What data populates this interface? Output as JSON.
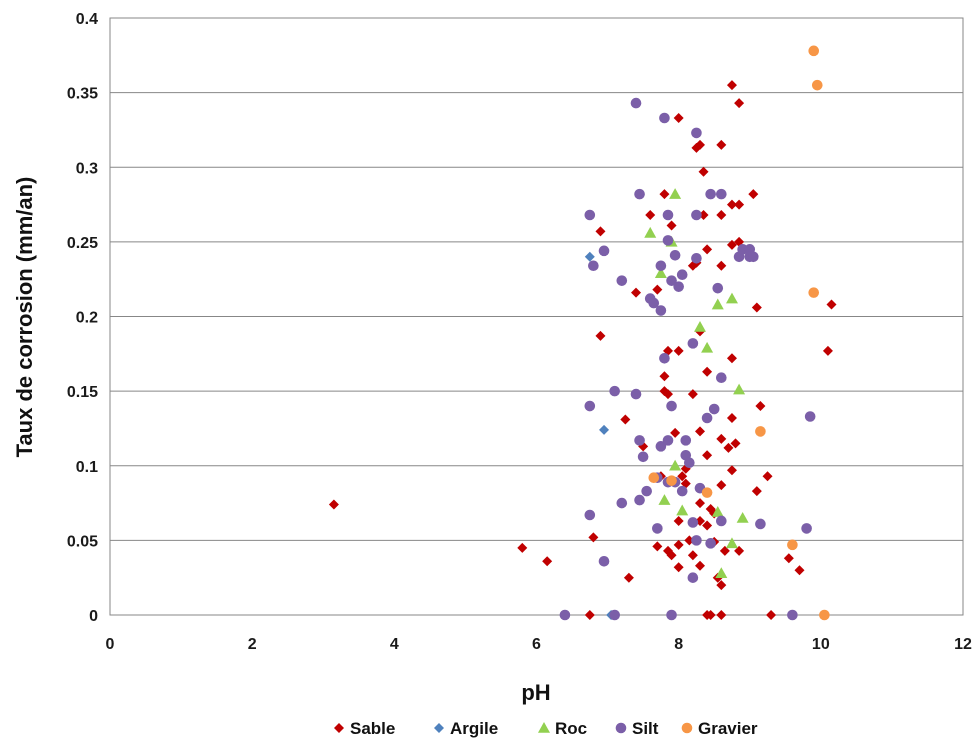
{
  "chart_data": {
    "type": "scatter",
    "title": "",
    "xlabel": "pH",
    "ylabel": "Taux de corrosion (mm/an)",
    "xlim": [
      0,
      12
    ],
    "ylim": [
      0,
      0.4
    ],
    "x_ticks": [
      0,
      2,
      4,
      6,
      8,
      10,
      12
    ],
    "y_ticks": [
      0,
      0.05,
      0.1,
      0.15,
      0.2,
      0.25,
      0.3,
      0.35,
      0.4
    ],
    "grid": "horizontal",
    "legend_position": "bottom",
    "series": [
      {
        "name": "Sable",
        "color": "#c00000",
        "marker": "diamond",
        "points": [
          [
            3.15,
            0.074
          ],
          [
            5.8,
            0.045
          ],
          [
            6.15,
            0.036
          ],
          [
            6.75,
            0
          ],
          [
            6.8,
            0.052
          ],
          [
            6.9,
            0.187
          ],
          [
            6.9,
            0.257
          ],
          [
            7.25,
            0.131
          ],
          [
            7.3,
            0.025
          ],
          [
            7.4,
            0.216
          ],
          [
            7.5,
            0.113
          ],
          [
            7.6,
            0.268
          ],
          [
            7.7,
            0.218
          ],
          [
            7.7,
            0.046
          ],
          [
            7.75,
            0.093
          ],
          [
            7.8,
            0.282
          ],
          [
            7.8,
            0.16
          ],
          [
            7.8,
            0.15
          ],
          [
            7.85,
            0.177
          ],
          [
            7.85,
            0.148
          ],
          [
            7.85,
            0.043
          ],
          [
            7.9,
            0.04
          ],
          [
            7.9,
            0.261
          ],
          [
            7.9,
            0
          ],
          [
            7.95,
            0.122
          ],
          [
            8.0,
            0.333
          ],
          [
            8.0,
            0.177
          ],
          [
            8.0,
            0.063
          ],
          [
            8.0,
            0.047
          ],
          [
            8.0,
            0.032
          ],
          [
            8.05,
            0.093
          ],
          [
            8.1,
            0.098
          ],
          [
            8.1,
            0.088
          ],
          [
            8.15,
            0.05
          ],
          [
            8.2,
            0.148
          ],
          [
            8.2,
            0.04
          ],
          [
            8.2,
            0.234
          ],
          [
            8.25,
            0.236
          ],
          [
            8.25,
            0.313
          ],
          [
            8.3,
            0.315
          ],
          [
            8.3,
            0.063
          ],
          [
            8.3,
            0.075
          ],
          [
            8.3,
            0.033
          ],
          [
            8.3,
            0.123
          ],
          [
            8.3,
            0.19
          ],
          [
            8.35,
            0.297
          ],
          [
            8.35,
            0.268
          ],
          [
            8.4,
            0.163
          ],
          [
            8.4,
            0.245
          ],
          [
            8.4,
            0.107
          ],
          [
            8.4,
            0.06
          ],
          [
            8.4,
            0
          ],
          [
            8.45,
            0
          ],
          [
            8.45,
            0.071
          ],
          [
            8.5,
            0.049
          ],
          [
            8.5,
            0.068
          ],
          [
            8.55,
            0.025
          ],
          [
            8.6,
            0.02
          ],
          [
            8.6,
            0.315
          ],
          [
            8.6,
            0.268
          ],
          [
            8.6,
            0.234
          ],
          [
            8.6,
            0.118
          ],
          [
            8.6,
            0.087
          ],
          [
            8.6,
            0
          ],
          [
            8.65,
            0.043
          ],
          [
            8.7,
            0.112
          ],
          [
            8.75,
            0.355
          ],
          [
            8.75,
            0.275
          ],
          [
            8.75,
            0.248
          ],
          [
            8.75,
            0.172
          ],
          [
            8.75,
            0.132
          ],
          [
            8.75,
            0.097
          ],
          [
            8.8,
            0.115
          ],
          [
            8.85,
            0.343
          ],
          [
            8.85,
            0.275
          ],
          [
            8.85,
            0.25
          ],
          [
            8.85,
            0.043
          ],
          [
            9.05,
            0.282
          ],
          [
            9.1,
            0.206
          ],
          [
            9.1,
            0.083
          ],
          [
            9.15,
            0.14
          ],
          [
            9.25,
            0.093
          ],
          [
            9.3,
            0
          ],
          [
            9.55,
            0.038
          ],
          [
            9.7,
            0.03
          ],
          [
            10.1,
            0.177
          ],
          [
            10.15,
            0.208
          ]
        ]
      },
      {
        "name": "Argile",
        "color": "#4f81bd",
        "marker": "diamond",
        "points": [
          [
            6.75,
            0.24
          ],
          [
            6.95,
            0.124
          ],
          [
            7.05,
            0
          ],
          [
            7.1,
            0
          ]
        ]
      },
      {
        "name": "Roc",
        "color": "#92d050",
        "marker": "triangle",
        "points": [
          [
            7.6,
            0.256
          ],
          [
            7.75,
            0.229
          ],
          [
            7.8,
            0.077
          ],
          [
            7.9,
            0.25
          ],
          [
            7.95,
            0.282
          ],
          [
            7.95,
            0.1
          ],
          [
            8.05,
            0.07
          ],
          [
            8.3,
            0.193
          ],
          [
            8.4,
            0.179
          ],
          [
            8.55,
            0.208
          ],
          [
            8.55,
            0.069
          ],
          [
            8.6,
            0.028
          ],
          [
            8.75,
            0.212
          ],
          [
            8.75,
            0.048
          ],
          [
            8.85,
            0.151
          ],
          [
            8.9,
            0.065
          ]
        ]
      },
      {
        "name": "Silt",
        "color": "#7b5fa8",
        "marker": "circle",
        "points": [
          [
            6.4,
            0
          ],
          [
            6.75,
            0.268
          ],
          [
            6.75,
            0.14
          ],
          [
            6.75,
            0.067
          ],
          [
            6.8,
            0.234
          ],
          [
            6.95,
            0.244
          ],
          [
            6.95,
            0.036
          ],
          [
            7.1,
            0.15
          ],
          [
            7.1,
            0
          ],
          [
            7.2,
            0.224
          ],
          [
            7.2,
            0.075
          ],
          [
            7.4,
            0.343
          ],
          [
            7.4,
            0.148
          ],
          [
            7.45,
            0.282
          ],
          [
            7.45,
            0.117
          ],
          [
            7.45,
            0.077
          ],
          [
            7.5,
            0.106
          ],
          [
            7.55,
            0.083
          ],
          [
            7.6,
            0.212
          ],
          [
            7.65,
            0.209
          ],
          [
            7.7,
            0.058
          ],
          [
            7.7,
            0.092
          ],
          [
            7.75,
            0.204
          ],
          [
            7.75,
            0.234
          ],
          [
            7.75,
            0.113
          ],
          [
            7.8,
            0.172
          ],
          [
            7.8,
            0.333
          ],
          [
            7.85,
            0.268
          ],
          [
            7.85,
            0.251
          ],
          [
            7.85,
            0.117
          ],
          [
            7.85,
            0.089
          ],
          [
            7.9,
            0.224
          ],
          [
            7.9,
            0.14
          ],
          [
            7.9,
            0
          ],
          [
            7.95,
            0.241
          ],
          [
            7.95,
            0.089
          ],
          [
            8.0,
            0.22
          ],
          [
            8.05,
            0.228
          ],
          [
            8.05,
            0.083
          ],
          [
            8.1,
            0.117
          ],
          [
            8.1,
            0.107
          ],
          [
            8.15,
            0.102
          ],
          [
            8.2,
            0.182
          ],
          [
            8.2,
            0.062
          ],
          [
            8.2,
            0.025
          ],
          [
            8.25,
            0.323
          ],
          [
            8.25,
            0.268
          ],
          [
            8.25,
            0.239
          ],
          [
            8.25,
            0.05
          ],
          [
            8.3,
            0.085
          ],
          [
            8.4,
            0.132
          ],
          [
            8.45,
            0.282
          ],
          [
            8.45,
            0.048
          ],
          [
            8.5,
            0.138
          ],
          [
            8.55,
            0.219
          ],
          [
            8.6,
            0.282
          ],
          [
            8.6,
            0.159
          ],
          [
            8.6,
            0.063
          ],
          [
            8.85,
            0.24
          ],
          [
            8.9,
            0.245
          ],
          [
            9.0,
            0.245
          ],
          [
            9.0,
            0.24
          ],
          [
            9.05,
            0.24
          ],
          [
            9.15,
            0.061
          ],
          [
            9.6,
            0
          ],
          [
            9.8,
            0.058
          ],
          [
            9.85,
            0.133
          ]
        ]
      },
      {
        "name": "Gravier",
        "color": "#f79646",
        "marker": "circle",
        "points": [
          [
            7.65,
            0.092
          ],
          [
            7.9,
            0.09
          ],
          [
            8.4,
            0.082
          ],
          [
            9.15,
            0.123
          ],
          [
            9.6,
            0.047
          ],
          [
            9.9,
            0.216
          ],
          [
            9.9,
            0.378
          ],
          [
            9.95,
            0.355
          ],
          [
            10.05,
            0
          ]
        ]
      }
    ]
  }
}
